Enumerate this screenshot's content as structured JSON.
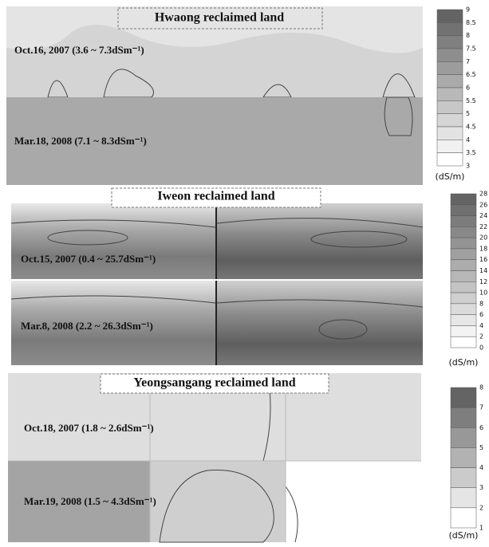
{
  "panels": [
    {
      "title": "Hwaong reclaimed land",
      "periods": [
        "Oct.16, 2007 (3.6 ~ 7.3dSm⁻¹)",
        "Mar.18, 2008 (7.1 ~ 8.3dSm⁻¹)"
      ],
      "colorbar": {
        "ticks": [
          9,
          8.5,
          8,
          7.5,
          7,
          6.5,
          6,
          5.5,
          5,
          4.5,
          4,
          3.5,
          3
        ],
        "unit": "(dS/m)"
      }
    },
    {
      "title": "Iweon reclaimed land",
      "periods": [
        "Oct.15, 2007 (0.4 ~ 25.7dSm⁻¹)",
        "Mar.8, 2008 (2.2 ~ 26.3dSm⁻¹)"
      ],
      "colorbar": {
        "ticks": [
          28,
          26,
          24,
          22,
          20,
          18,
          16,
          14,
          12,
          10,
          8,
          6,
          4,
          2,
          0
        ],
        "unit": "(dS/m)"
      }
    },
    {
      "title": "Yeongsangang reclaimed land",
      "periods": [
        "Oct.18, 2007 (1.8 ~ 2.6dSm⁻¹)",
        "Mar.19, 2008 (1.5 ~ 4.3dSm⁻¹)"
      ],
      "colorbar": {
        "ticks": [
          8,
          7,
          6,
          5,
          4,
          3,
          2,
          1
        ],
        "unit": "(dS/m)"
      }
    }
  ]
}
